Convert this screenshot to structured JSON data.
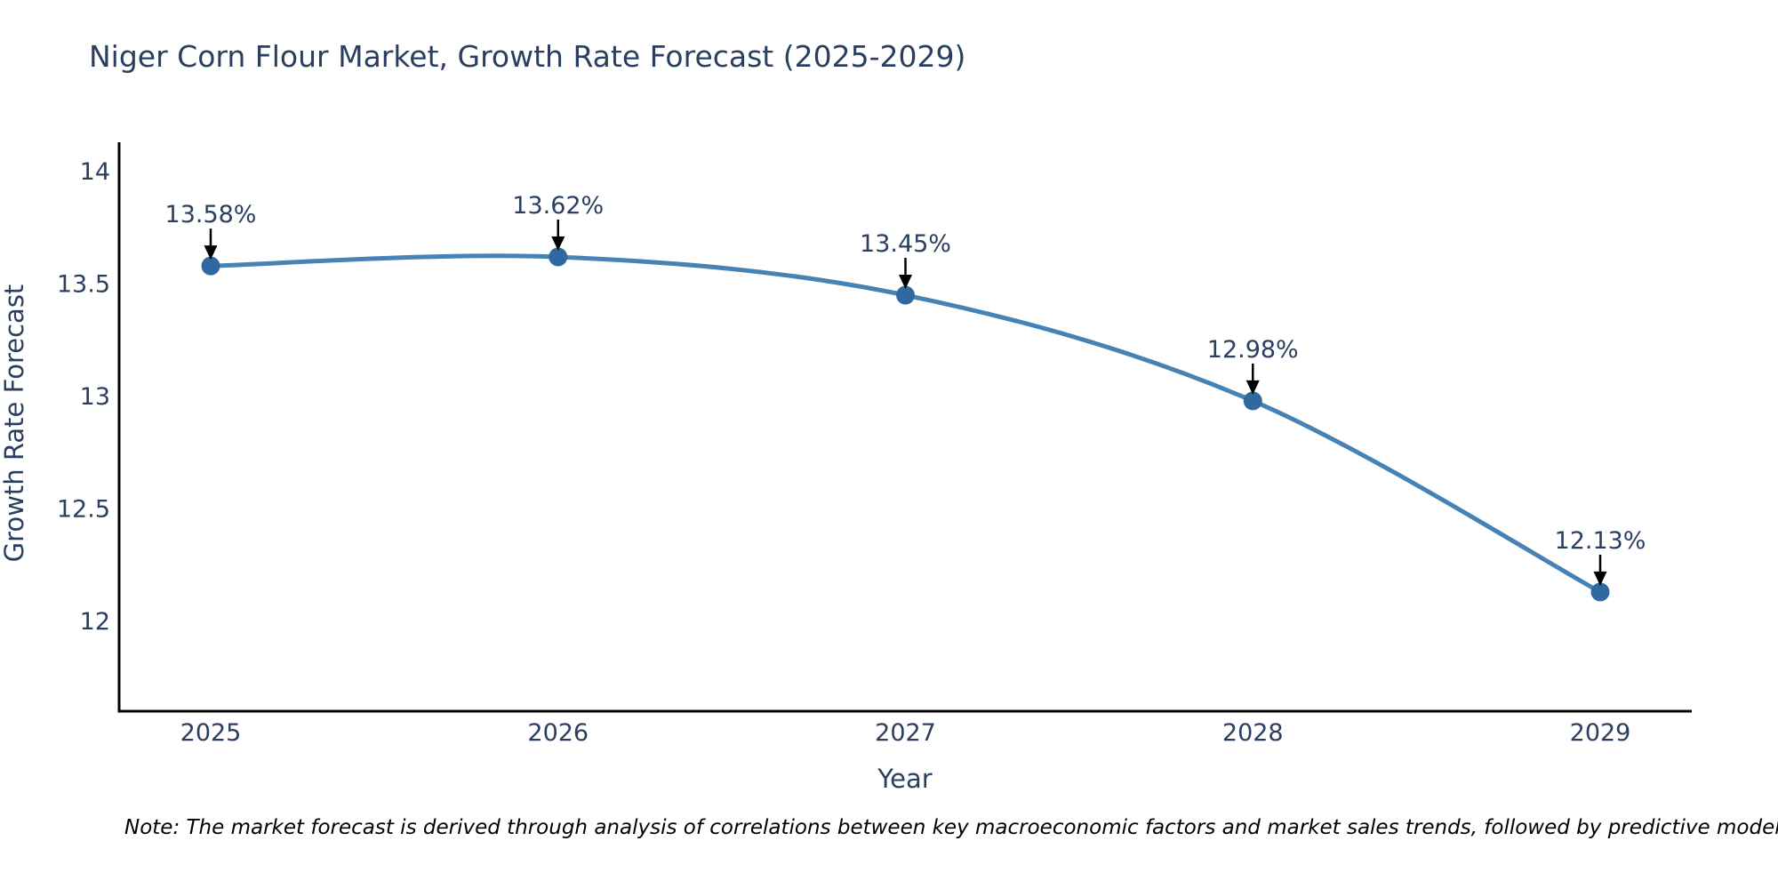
{
  "chart_data": {
    "type": "line",
    "title": "Niger Corn Flour Market, Growth Rate Forecast (2025-2029)",
    "xlabel": "Year",
    "ylabel": "Growth Rate Forecast",
    "categories": [
      "2025",
      "2026",
      "2027",
      "2028",
      "2029"
    ],
    "values": [
      13.58,
      13.62,
      13.45,
      12.98,
      12.13
    ],
    "point_labels": [
      "13.58%",
      "13.62%",
      "13.45%",
      "12.98%",
      "12.13%"
    ],
    "y_ticks": [
      14,
      13.5,
      13,
      12.5,
      12
    ],
    "y_tick_labels": [
      "14",
      "13.5",
      "13",
      "12.5",
      "12"
    ],
    "ylim": [
      11.6,
      14.13
    ],
    "grid": false,
    "legend": "none",
    "line_color": "#4682b4",
    "marker_color": "#2f699f",
    "axis_color": "#000000",
    "arrow_color": "#000000"
  },
  "note": {
    "text": "Note: The market forecast is derived through analysis of correlations between key macroeconomic factors and market sales trends, followed by predictive modeling to project future sal"
  }
}
